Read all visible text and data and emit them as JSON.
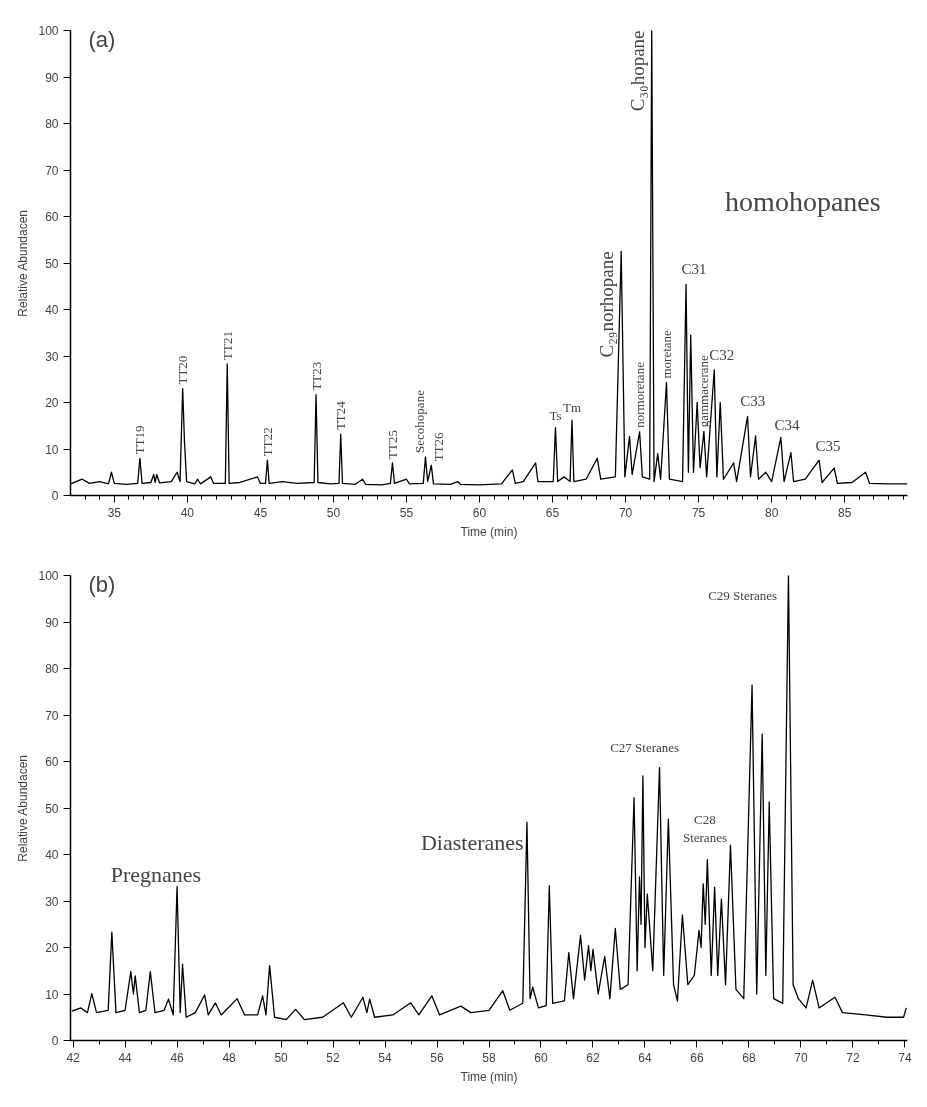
{
  "chart_data": [
    {
      "type": "line",
      "title": "(a)",
      "xlabel": "Time (min)",
      "ylabel": "Relative Abundacen",
      "series": [
        {
          "color": "#000000",
          "x": [
            32.0,
            32.8,
            33.3,
            34.0,
            34.6,
            34.8,
            35.0,
            35.8,
            36.6,
            36.75,
            36.9,
            37.5,
            37.7,
            37.8,
            37.9,
            38.1,
            38.9,
            39.3,
            39.5,
            39.68,
            39.8,
            39.95,
            40.5,
            40.7,
            40.9,
            41.6,
            41.8,
            42.6,
            42.73,
            42.86,
            43.6,
            44.8,
            45.0,
            45.35,
            45.48,
            45.6,
            46.5,
            47.5,
            48.68,
            48.81,
            48.94,
            49.8,
            50.38,
            50.5,
            50.62,
            51.5,
            52.0,
            52.2,
            53.3,
            53.9,
            54.04,
            54.18,
            55.0,
            55.2,
            56.15,
            56.3,
            56.45,
            56.7,
            56.85,
            58.0,
            58.5,
            58.7,
            60.0,
            61.5,
            62.25,
            62.45,
            63.0,
            63.84,
            64.0,
            65.05,
            65.2,
            65.35,
            65.8,
            66.2,
            66.33,
            66.46,
            67.3,
            68.06,
            68.3,
            69.3,
            69.7,
            69.95,
            70.27,
            70.45,
            70.96,
            71.15,
            71.65,
            71.79,
            71.95,
            72.2,
            72.4,
            72.8,
            73.0,
            73.9,
            74.14,
            74.3,
            74.46,
            74.65,
            74.9,
            75.1,
            75.36,
            75.55,
            76.07,
            76.25,
            76.48,
            76.7,
            77.4,
            77.6,
            78.35,
            78.55,
            78.9,
            79.1,
            79.6,
            80.0,
            80.63,
            80.85,
            81.32,
            81.5,
            82.3,
            83.25,
            83.45,
            84.28,
            84.5,
            85.5,
            86.43,
            86.7,
            88.0,
            89.3
          ],
          "values": [
            2.5,
            3.5,
            2.6,
            3.0,
            2.5,
            5,
            2.6,
            2.4,
            2.6,
            8,
            2.6,
            2.8,
            4.5,
            2.8,
            4.5,
            2.7,
            3.0,
            5,
            3.0,
            23,
            11.8,
            3.0,
            2.5,
            3.5,
            2.5,
            4,
            2.6,
            2.6,
            28.3,
            2.6,
            2.8,
            4,
            2.6,
            2.6,
            7.6,
            2.6,
            3.0,
            2.6,
            2.8,
            21.7,
            2.8,
            2.5,
            2.6,
            13.2,
            2.6,
            2.4,
            3.5,
            2.4,
            2.3,
            2.6,
            7,
            2.6,
            3.5,
            2.5,
            2.6,
            8.3,
            3,
            6.5,
            2.5,
            2.4,
            3,
            2.4,
            2.3,
            2.5,
            5.5,
            2.6,
            3,
            7,
            3.0,
            3.0,
            14.6,
            3,
            4,
            3,
            16.2,
            3,
            3.5,
            8,
            3.5,
            4,
            52.5,
            4,
            12.7,
            4.5,
            13.7,
            4,
            3.5,
            100,
            3,
            9,
            3.5,
            24.3,
            3.5,
            3,
            45.4,
            5,
            34.5,
            5,
            20,
            6,
            13.8,
            4,
            27,
            4,
            20,
            3.5,
            7,
            3,
            17,
            4,
            12.8,
            3.5,
            5,
            3,
            12.5,
            3,
            9.2,
            3,
            3.5,
            7.6,
            2.8,
            5.9,
            2.6,
            2.8,
            5,
            2.6,
            2.5,
            2.5
          ]
        }
      ],
      "xlim": [
        32.0,
        89.3
      ],
      "ylim": [
        0,
        100
      ],
      "xticks": [
        {
          "value": 33,
          "label": null
        },
        {
          "value": 34,
          "label": null
        },
        35,
        {
          "value": 36,
          "label": null
        },
        {
          "value": 37,
          "label": null
        },
        {
          "value": 38,
          "label": null
        },
        {
          "value": 39,
          "label": null
        },
        40,
        {
          "value": 41,
          "label": null
        },
        {
          "value": 42,
          "label": null
        },
        {
          "value": 43,
          "label": null
        },
        {
          "value": 44,
          "label": null
        },
        45,
        {
          "value": 46,
          "label": null
        },
        {
          "value": 47,
          "label": null
        },
        {
          "value": 48,
          "label": null
        },
        {
          "value": 49,
          "label": null
        },
        50,
        {
          "value": 51,
          "label": null
        },
        {
          "value": 52,
          "label": null
        },
        {
          "value": 53,
          "label": null
        },
        {
          "value": 54,
          "label": null
        },
        55,
        {
          "value": 56,
          "label": null
        },
        {
          "value": 57,
          "label": null
        },
        {
          "value": 58,
          "label": null
        },
        {
          "value": 59,
          "label": null
        },
        60,
        {
          "value": 61,
          "label": null
        },
        {
          "value": 62,
          "label": null
        },
        {
          "value": 63,
          "label": null
        },
        {
          "value": 64,
          "label": null
        },
        65,
        {
          "value": 66,
          "label": null
        },
        {
          "value": 67,
          "label": null
        },
        {
          "value": 68,
          "label": null
        },
        {
          "value": 69,
          "label": null
        },
        70,
        {
          "value": 71,
          "label": null
        },
        {
          "value": 72,
          "label": null
        },
        {
          "value": 73,
          "label": null
        },
        {
          "value": 74,
          "label": null
        },
        75,
        {
          "value": 76,
          "label": null
        },
        {
          "value": 77,
          "label": null
        },
        {
          "value": 78,
          "label": null
        },
        {
          "value": 79,
          "label": null
        },
        80,
        {
          "value": 81,
          "label": null
        },
        {
          "value": 82,
          "label": null
        },
        {
          "value": 83,
          "label": null
        },
        {
          "value": 84,
          "label": null
        },
        85,
        {
          "value": 86,
          "label": null
        },
        {
          "value": 87,
          "label": null
        },
        {
          "value": 88,
          "label": null
        },
        {
          "value": 89,
          "label": null
        }
      ],
      "yticks": [
        0,
        10,
        20,
        30,
        40,
        50,
        60,
        70,
        80,
        90,
        100
      ],
      "annotations": [
        {
          "text": "TT19",
          "x": 36.75,
          "y": 8
        },
        {
          "text": "TT20",
          "x": 39.68,
          "y": 23
        },
        {
          "text": "TT21",
          "x": 42.73,
          "y": 28.3
        },
        {
          "text": "TT22",
          "x": 45.48,
          "y": 7.6
        },
        {
          "text": "TT23",
          "x": 48.81,
          "y": 21.7
        },
        {
          "text": "TT24",
          "x": 50.5,
          "y": 13.2
        },
        {
          "text": "TT25",
          "x": 54.04,
          "y": 7
        },
        {
          "text": "Secohopane",
          "x": 56.3,
          "y": 8.3
        },
        {
          "text": "TT26",
          "x": 56.7,
          "y": 6.5
        },
        {
          "text": "Ts",
          "x": 65.2,
          "y": 14.6
        },
        {
          "text": "Tm",
          "x": 66.33,
          "y": 16.2
        },
        {
          "text": "C₂₉norhopane",
          "x": 69.7,
          "y": 52.5
        },
        {
          "text": "normoretane",
          "x": 70.96,
          "y": 13.7
        },
        {
          "text": "C₃₀hopane",
          "x": 71.79,
          "y": 100
        },
        {
          "text": "moretane",
          "x": 72.8,
          "y": 24.3
        },
        {
          "text": "gammacerane",
          "x": 75.36,
          "y": 13.8
        },
        "C31",
        "C32",
        "C33",
        "C34",
        "C35",
        "homohopanes"
      ]
    },
    {
      "type": "line",
      "title": "(b)",
      "xlabel": "Time (min)",
      "ylabel": "Relative Abundacen",
      "series": [
        {
          "color": "#000000",
          "x": [
            41.95,
            42.3,
            42.55,
            42.72,
            42.9,
            43.35,
            43.49,
            43.65,
            44.0,
            44.22,
            44.32,
            44.39,
            44.55,
            44.8,
            44.97,
            45.15,
            45.5,
            45.67,
            45.85,
            46.0,
            46.12,
            46.21,
            46.35,
            46.7,
            47.06,
            47.2,
            47.47,
            47.7,
            48.31,
            48.6,
            49.1,
            49.29,
            49.42,
            49.56,
            49.75,
            50.2,
            50.56,
            50.9,
            51.6,
            52.4,
            52.7,
            53.15,
            53.3,
            53.41,
            53.6,
            54.3,
            54.99,
            55.3,
            55.8,
            56.1,
            56.92,
            57.3,
            58.0,
            58.53,
            58.8,
            59.3,
            59.46,
            59.58,
            59.68,
            59.9,
            60.2,
            60.32,
            60.45,
            60.9,
            61.07,
            61.25,
            61.52,
            61.68,
            61.83,
            61.92,
            62.0,
            62.2,
            62.45,
            62.65,
            62.86,
            63.05,
            63.35,
            63.58,
            63.7,
            63.79,
            63.85,
            63.92,
            64.0,
            64.09,
            64.3,
            64.56,
            64.72,
            64.9,
            65.1,
            65.25,
            65.44,
            65.65,
            65.9,
            66.08,
            66.16,
            66.24,
            66.32,
            66.4,
            66.55,
            66.68,
            66.8,
            66.94,
            67.1,
            67.29,
            67.5,
            67.8,
            68.12,
            68.3,
            68.51,
            68.65,
            68.78,
            68.95,
            69.3,
            69.52,
            69.7,
            69.9,
            70.2,
            70.45,
            70.7,
            71.31,
            71.6,
            72.5,
            73.3,
            73.95,
            74.05
          ],
          "values": [
            6.3,
            7,
            6,
            10.1,
            6,
            6.5,
            23.3,
            6,
            6.5,
            14.8,
            10,
            13.9,
            6,
            6.5,
            14.8,
            6,
            6.5,
            8.9,
            5.5,
            33.1,
            6,
            16.4,
            5,
            6,
            9.8,
            5.5,
            8.1,
            5.5,
            9,
            5.5,
            5.5,
            9.6,
            5.5,
            16.1,
            5,
            4.5,
            6.7,
            4.5,
            5,
            8.1,
            5,
            9.3,
            6,
            8.9,
            5,
            5.5,
            8.1,
            5.5,
            9.6,
            5.5,
            7.4,
            6,
            6.5,
            10.7,
            6.5,
            8,
            46.9,
            9,
            11.5,
            7,
            7.5,
            33.3,
            8,
            8.5,
            18.9,
            9,
            22.6,
            13,
            20.4,
            15,
            19.6,
            10,
            18.1,
            9,
            24.1,
            11,
            12,
            52.2,
            15,
            35.2,
            25,
            56.9,
            20,
            31.5,
            15,
            58.7,
            14,
            47.6,
            12,
            8.5,
            27,
            12,
            14,
            23.7,
            20,
            33.7,
            25,
            38.9,
            14,
            33,
            14,
            30.4,
            12,
            42,
            11,
            9,
            76.4,
            10,
            65.9,
            14,
            51.3,
            9,
            8,
            100,
            12,
            9,
            7,
            13,
            7,
            9.3,
            6,
            5.5,
            5,
            5,
            7
          ]
        }
      ],
      "xlim": [
        41.9,
        74.1
      ],
      "ylim": [
        0,
        100
      ],
      "xticks": [
        42,
        {
          "value": 43,
          "label": null
        },
        44,
        {
          "value": 45,
          "label": null
        },
        46,
        {
          "value": 47,
          "label": null
        },
        48,
        {
          "value": 49,
          "label": null
        },
        50,
        {
          "value": 51,
          "label": null
        },
        52,
        {
          "value": 53,
          "label": null
        },
        54,
        {
          "value": 55,
          "label": null
        },
        56,
        {
          "value": 57,
          "label": null
        },
        58,
        {
          "value": 59,
          "label": null
        },
        60,
        {
          "value": 61,
          "label": null
        },
        62,
        {
          "value": 63,
          "label": null
        },
        64,
        {
          "value": 65,
          "label": null
        },
        66,
        {
          "value": 67,
          "label": null
        },
        68,
        {
          "value": 69,
          "label": null
        },
        70,
        {
          "value": 71,
          "label": null
        },
        72,
        {
          "value": 73,
          "label": null
        },
        74
      ],
      "yticks": [
        0,
        10,
        20,
        30,
        40,
        50,
        60,
        70,
        80,
        90,
        100
      ],
      "annotations": [
        "Pregnanes",
        "Diasteranes",
        "C27 Steranes",
        "C28\nSteranes",
        "C29 Steranes"
      ]
    }
  ]
}
